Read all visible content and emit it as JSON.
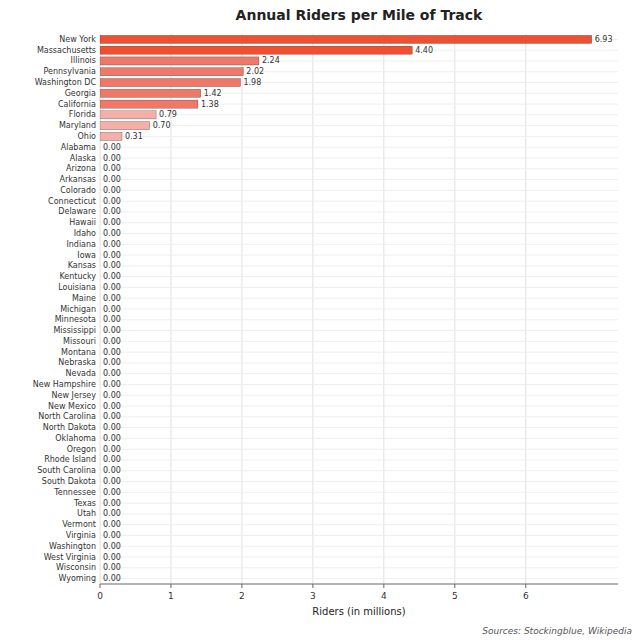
{
  "chart_data": {
    "type": "bar",
    "orientation": "horizontal",
    "title": "Annual Riders per Mile of Track",
    "xlabel": "Riders (in millions)",
    "annotations": [
      "Sources: Stockingblue, Wikipedia"
    ],
    "categories": [
      "New York",
      "Massachusetts",
      "Illinois",
      "Pennsylvania",
      "Washington DC",
      "Georgia",
      "California",
      "Florida",
      "Maryland",
      "Ohio",
      "Alabama",
      "Alaska",
      "Arizona",
      "Arkansas",
      "Colorado",
      "Connecticut",
      "Delaware",
      "Hawaii",
      "Idaho",
      "Indiana",
      "Iowa",
      "Kansas",
      "Kentucky",
      "Louisiana",
      "Maine",
      "Michigan",
      "Minnesota",
      "Mississippi",
      "Missouri",
      "Montana",
      "Nebraska",
      "Nevada",
      "New Hampshire",
      "New Jersey",
      "New Mexico",
      "North Carolina",
      "North Dakota",
      "Oklahoma",
      "Oregon",
      "Rhode Island",
      "South Carolina",
      "South Dakota",
      "Tennessee",
      "Texas",
      "Utah",
      "Vermont",
      "Virginia",
      "Washington",
      "West Virginia",
      "Wisconsin",
      "Wyoming"
    ],
    "values": [
      6.93,
      4.4,
      2.24,
      2.02,
      1.98,
      1.42,
      1.38,
      0.79,
      0.7,
      0.31,
      0.0,
      0.0,
      0.0,
      0.0,
      0.0,
      0.0,
      0.0,
      0.0,
      0.0,
      0.0,
      0.0,
      0.0,
      0.0,
      0.0,
      0.0,
      0.0,
      0.0,
      0.0,
      0.0,
      0.0,
      0.0,
      0.0,
      0.0,
      0.0,
      0.0,
      0.0,
      0.0,
      0.0,
      0.0,
      0.0,
      0.0,
      0.0,
      0.0,
      0.0,
      0.0,
      0.0,
      0.0,
      0.0,
      0.0,
      0.0,
      0.0
    ],
    "value_labels": [
      "6.93",
      "4.40",
      "2.24",
      "2.02",
      "1.98",
      "1.42",
      "1.38",
      "0.79",
      "0.70",
      "0.31",
      "0.00",
      "0.00",
      "0.00",
      "0.00",
      "0.00",
      "0.00",
      "0.00",
      "0.00",
      "0.00",
      "0.00",
      "0.00",
      "0.00",
      "0.00",
      "0.00",
      "0.00",
      "0.00",
      "0.00",
      "0.00",
      "0.00",
      "0.00",
      "0.00",
      "0.00",
      "0.00",
      "0.00",
      "0.00",
      "0.00",
      "0.00",
      "0.00",
      "0.00",
      "0.00",
      "0.00",
      "0.00",
      "0.00",
      "0.00",
      "0.00",
      "0.00",
      "0.00",
      "0.00",
      "0.00",
      "0.00",
      "0.00"
    ],
    "colors": [
      "#f05030",
      "#f05030",
      "#f07868",
      "#f07868",
      "#f07868",
      "#f07868",
      "#f07868",
      "#f4b0a8",
      "#f4b0a8",
      "#f4b0a8",
      "#f4b0a8",
      "#f4b0a8",
      "#f4b0a8",
      "#f4b0a8",
      "#f4b0a8",
      "#f4b0a8",
      "#f4b0a8",
      "#f4b0a8",
      "#f4b0a8",
      "#f4b0a8",
      "#f4b0a8",
      "#f4b0a8",
      "#f4b0a8",
      "#f4b0a8",
      "#f4b0a8",
      "#f4b0a8",
      "#f4b0a8",
      "#f4b0a8",
      "#f4b0a8",
      "#f4b0a8",
      "#f4b0a8",
      "#f4b0a8",
      "#f4b0a8",
      "#f4b0a8",
      "#f4b0a8",
      "#f4b0a8",
      "#f4b0a8",
      "#f4b0a8",
      "#f4b0a8",
      "#f4b0a8",
      "#f4b0a8",
      "#f4b0a8",
      "#f4b0a8",
      "#f4b0a8",
      "#f4b0a8",
      "#f4b0a8",
      "#f4b0a8",
      "#f4b0a8",
      "#f4b0a8",
      "#f4b0a8",
      "#f4b0a8"
    ],
    "xlim": [
      0,
      7.3
    ],
    "xticks": [
      0,
      1,
      2,
      3,
      4,
      5,
      6
    ],
    "grid": true,
    "data_labels": true
  }
}
